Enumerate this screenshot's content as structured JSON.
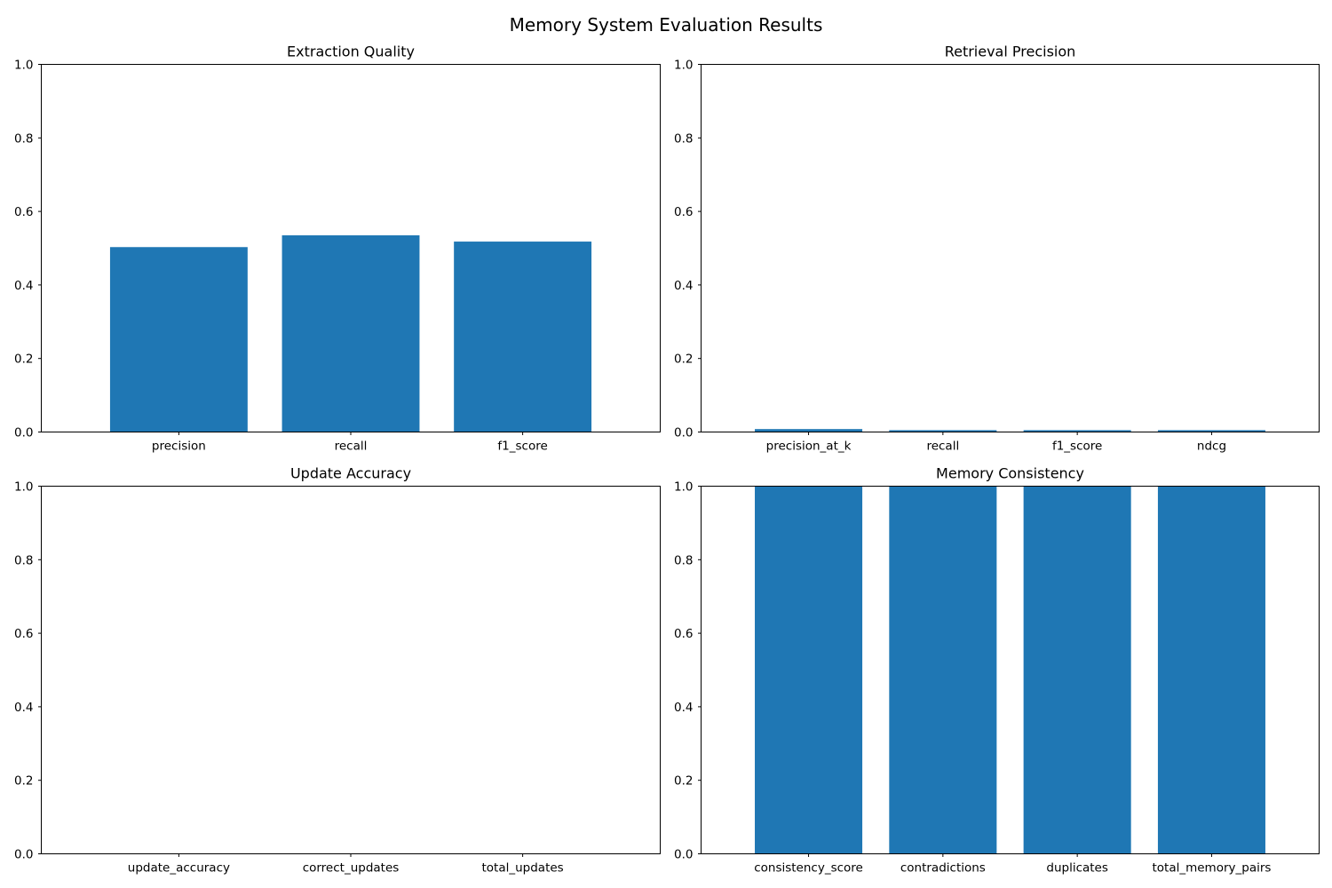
{
  "figure": {
    "title": "Memory System Evaluation Results"
  },
  "colors": {
    "bar": "#1f77b4",
    "axis": "#000000",
    "background": "#ffffff"
  },
  "chart_data": [
    {
      "type": "bar",
      "title": "Extraction Quality",
      "categories": [
        "precision",
        "recall",
        "f1_score"
      ],
      "values": [
        0.503,
        0.535,
        0.518
      ],
      "xlabel": "",
      "ylabel": "",
      "ylim": [
        0,
        1
      ],
      "yticks": [
        "0.0",
        "0.2",
        "0.4",
        "0.6",
        "0.8",
        "1.0"
      ],
      "grid": false,
      "legend": "none"
    },
    {
      "type": "bar",
      "title": "Retrieval Precision",
      "categories": [
        "precision_at_k",
        "recall",
        "f1_score",
        "ndcg"
      ],
      "values": [
        0.008,
        0.005,
        0.005,
        0.005
      ],
      "xlabel": "",
      "ylabel": "",
      "ylim": [
        0,
        1
      ],
      "yticks": [
        "0.0",
        "0.2",
        "0.4",
        "0.6",
        "0.8",
        "1.0"
      ],
      "grid": false,
      "legend": "none"
    },
    {
      "type": "bar",
      "title": "Update Accuracy",
      "categories": [
        "update_accuracy",
        "correct_updates",
        "total_updates"
      ],
      "values": [
        0,
        0,
        0
      ],
      "xlabel": "",
      "ylabel": "",
      "ylim": [
        0,
        1
      ],
      "yticks": [
        "0.0",
        "0.2",
        "0.4",
        "0.6",
        "0.8",
        "1.0"
      ],
      "grid": false,
      "legend": "none"
    },
    {
      "type": "bar",
      "title": "Memory Consistency",
      "categories": [
        "consistency_score",
        "contradictions",
        "duplicates",
        "total_memory_pairs"
      ],
      "values": [
        1.0,
        1.0,
        1.0,
        1.0
      ],
      "xlabel": "",
      "ylabel": "",
      "ylim": [
        0,
        1
      ],
      "yticks": [
        "0.0",
        "0.2",
        "0.4",
        "0.6",
        "0.8",
        "1.0"
      ],
      "grid": false,
      "legend": "none"
    }
  ]
}
